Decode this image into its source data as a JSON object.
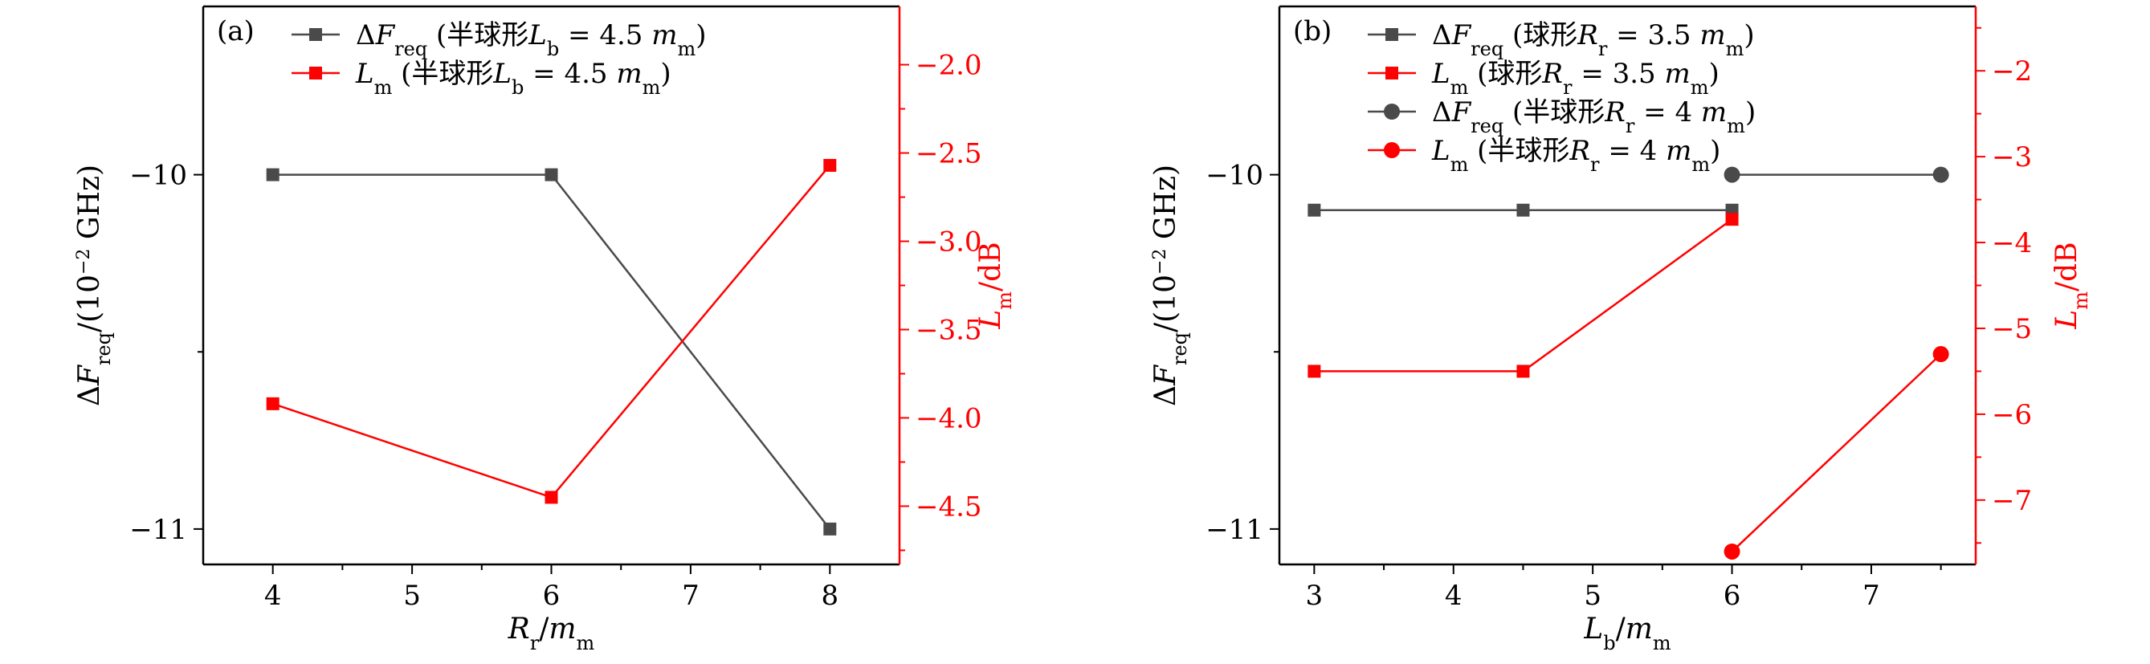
{
  "colors": {
    "black_series": "#4a4a4a",
    "red_series": "#ff0000",
    "axis": "#000000",
    "right_axis": "#ff0000"
  },
  "chart_data": [
    {
      "type": "line",
      "panel_label": "(a)",
      "xlabel": "Rr/mm",
      "ylabel_left": "ΔFreq/(10⁻² GHz)",
      "ylabel_right": "Lm/dB",
      "xlim": [
        3.5,
        8.5
      ],
      "ylim_left": [
        -11.1,
        -9.525
      ],
      "ylim_right": [
        -4.83,
        -1.67
      ],
      "x_ticks": [
        "4",
        "5",
        "6",
        "7",
        "8"
      ],
      "y_left_ticks": [
        "−10",
        "−11"
      ],
      "y_right_ticks": [
        "−2.0",
        "−2.5",
        "−3.0",
        "−3.5",
        "−4.0",
        "−4.5"
      ],
      "legend_position": "top-left",
      "series": [
        {
          "name": "ΔFreq (半球形Lb = 4.5 mm)",
          "axis": "left",
          "marker": "square",
          "color": "#4a4a4a",
          "x": [
            4,
            6,
            8
          ],
          "y": [
            -10,
            -10,
            -11
          ]
        },
        {
          "name": "Lm (半球形Lb = 4.5 mm)",
          "axis": "right",
          "marker": "square",
          "color": "#ff0000",
          "x": [
            4,
            6,
            8
          ],
          "y": [
            -3.92,
            -4.45,
            -2.57
          ]
        }
      ]
    },
    {
      "type": "line",
      "panel_label": "(b)",
      "xlabel": "Lb/mm",
      "ylabel_left": "ΔFreq/(10⁻² GHz)",
      "ylabel_right": "Lm/dB",
      "xlim": [
        2.75,
        7.75
      ],
      "ylim_left": [
        -11.1,
        -9.525
      ],
      "ylim_right": [
        -7.75,
        -1.25
      ],
      "x_ticks": [
        "3",
        "4",
        "5",
        "6",
        "7"
      ],
      "y_left_ticks": [
        "−10",
        "−11"
      ],
      "y_right_ticks": [
        "−2",
        "−3",
        "−4",
        "−5",
        "−6",
        "−7"
      ],
      "legend_position": "top-left",
      "series": [
        {
          "name": "ΔFreq (球形Rr = 3.5 mm)",
          "axis": "left",
          "marker": "square",
          "color": "#4a4a4a",
          "x": [
            3,
            4.5,
            6
          ],
          "y": [
            -10.1,
            -10.1,
            -10.1
          ]
        },
        {
          "name": "Lm (球形Rr = 3.5 mm)",
          "axis": "right",
          "marker": "square",
          "color": "#ff0000",
          "x": [
            3,
            4.5,
            6
          ],
          "y": [
            -5.5,
            -5.5,
            -3.73
          ]
        },
        {
          "name": "ΔFreq (半球形Rr = 4 mm)",
          "axis": "left",
          "marker": "circle",
          "color": "#4a4a4a",
          "x": [
            6,
            7.5
          ],
          "y": [
            -10,
            -10
          ]
        },
        {
          "name": "Lm (半球形Rr = 4 mm)",
          "axis": "right",
          "marker": "circle",
          "color": "#ff0000",
          "x": [
            6,
            7.5
          ],
          "y": [
            -7.6,
            -5.3
          ]
        }
      ]
    }
  ]
}
